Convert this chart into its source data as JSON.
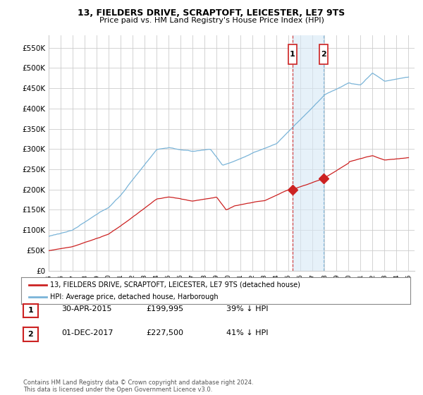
{
  "title": "13, FIELDERS DRIVE, SCRAPTOFT, LEICESTER, LE7 9TS",
  "subtitle": "Price paid vs. HM Land Registry's House Price Index (HPI)",
  "ylim": [
    0,
    580000
  ],
  "yticks": [
    0,
    50000,
    100000,
    150000,
    200000,
    250000,
    300000,
    350000,
    400000,
    450000,
    500000,
    550000
  ],
  "ytick_labels": [
    "£0",
    "£50K",
    "£100K",
    "£150K",
    "£200K",
    "£250K",
    "£300K",
    "£350K",
    "£400K",
    "£450K",
    "£500K",
    "£550K"
  ],
  "hpi_color": "#7ab4d8",
  "price_color": "#cc2222",
  "vline1_color": "#cc2222",
  "vline2_color": "#7ab4d8",
  "shade_color": "#d6e8f5",
  "annotation_box_color": "#ffffff",
  "annotation_border_color": "#cc2222",
  "sale1_year": 2015.33,
  "sale2_year": 2017.92,
  "legend_label_property": "13, FIELDERS DRIVE, SCRAPTOFT, LEICESTER, LE7 9TS (detached house)",
  "legend_label_hpi": "HPI: Average price, detached house, Harborough",
  "footer": "Contains HM Land Registry data © Crown copyright and database right 2024.\nThis data is licensed under the Open Government Licence v3.0.",
  "background_color": "#ffffff",
  "grid_color": "#cccccc"
}
